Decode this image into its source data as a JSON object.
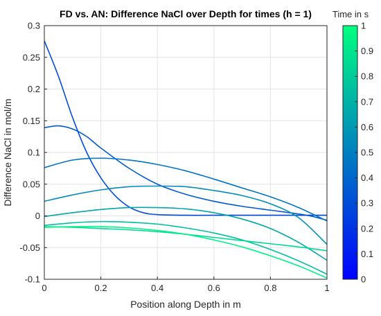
{
  "chart_data": {
    "type": "line",
    "title": "FD vs. AN: Difference NaCl over Depth for times (h = 1)",
    "xlabel": "Position along Depth in m",
    "ylabel": "Difference NaCl in mol/m",
    "xlim": [
      0,
      1
    ],
    "ylim": [
      -0.1,
      0.3
    ],
    "xticks": [
      0,
      0.2,
      0.4,
      0.6,
      0.8,
      1
    ],
    "xtick_labels": [
      "0",
      "0.2",
      "0.4",
      "0.6",
      "0.8",
      "1"
    ],
    "yticks": [
      -0.1,
      -0.05,
      0,
      0.05,
      0.1,
      0.15,
      0.2,
      0.25,
      0.3
    ],
    "ytick_labels": [
      "-0.1",
      "-0.05",
      "0",
      "0.05",
      "0.1",
      "0.15",
      "0.2",
      "0.25",
      "0.3"
    ],
    "grid": true,
    "colorbar": {
      "label": "Time in s",
      "range": [
        0,
        1
      ],
      "ticks": [
        0,
        0.1,
        0.2,
        0.3,
        0.4,
        0.5,
        0.6,
        0.7,
        0.8,
        0.9,
        1
      ],
      "tick_labels": [
        "0",
        "0.1",
        "0.2",
        "0.3",
        "0.4",
        "0.5",
        "0.6",
        "0.7",
        "0.8",
        "0.9",
        "1"
      ],
      "color_low": "#0000ff",
      "color_high": "#00ff80"
    },
    "series": [
      {
        "t": 0.3,
        "x": [
          0,
          0.05,
          0.1,
          0.15,
          0.2,
          0.25,
          0.3,
          0.35,
          0.4,
          0.5,
          0.6,
          0.7,
          0.8,
          0.9,
          1.0
        ],
        "y": [
          0.276,
          0.22,
          0.155,
          0.1,
          0.06,
          0.032,
          0.014,
          0.005,
          0.002,
          0.001,
          0.001,
          0.001,
          0.001,
          0.001,
          0.001
        ]
      },
      {
        "t": 0.35,
        "x": [
          0,
          0.05,
          0.1,
          0.15,
          0.2,
          0.3,
          0.4,
          0.5,
          0.6,
          0.7,
          0.8,
          0.9,
          0.95,
          1.0
        ],
        "y": [
          0.139,
          0.142,
          0.137,
          0.125,
          0.107,
          0.075,
          0.05,
          0.034,
          0.023,
          0.015,
          0.009,
          0.003,
          -0.001,
          -0.007
        ]
      },
      {
        "t": 0.45,
        "x": [
          0,
          0.1,
          0.2,
          0.3,
          0.4,
          0.5,
          0.6,
          0.7,
          0.8,
          0.9,
          1.0
        ],
        "y": [
          0.076,
          0.088,
          0.091,
          0.088,
          0.081,
          0.071,
          0.058,
          0.044,
          0.03,
          0.013,
          -0.008
        ]
      },
      {
        "t": 0.55,
        "x": [
          0,
          0.1,
          0.2,
          0.3,
          0.4,
          0.5,
          0.6,
          0.7,
          0.8,
          0.9,
          1.0
        ],
        "y": [
          0.023,
          0.033,
          0.041,
          0.046,
          0.047,
          0.046,
          0.04,
          0.032,
          0.019,
          -0.003,
          -0.045
        ]
      },
      {
        "t": 0.65,
        "x": [
          0,
          0.1,
          0.2,
          0.3,
          0.4,
          0.5,
          0.6,
          0.7,
          0.8,
          0.9,
          1.0
        ],
        "y": [
          -0.001,
          0.005,
          0.01,
          0.013,
          0.013,
          0.011,
          0.005,
          -0.005,
          -0.02,
          -0.042,
          -0.07
        ]
      },
      {
        "t": 0.75,
        "x": [
          0,
          0.1,
          0.2,
          0.3,
          0.4,
          0.5,
          0.6,
          0.7,
          0.8,
          0.9,
          1.0
        ],
        "y": [
          -0.015,
          -0.011,
          -0.009,
          -0.01,
          -0.013,
          -0.019,
          -0.027,
          -0.038,
          -0.053,
          -0.071,
          -0.092
        ]
      },
      {
        "t": 0.85,
        "x": [
          0,
          0.1,
          0.2,
          0.3,
          0.4,
          0.5,
          0.6,
          0.7,
          0.8,
          0.9,
          1.0
        ],
        "y": [
          -0.017,
          -0.018,
          -0.02,
          -0.022,
          -0.025,
          -0.029,
          -0.034,
          -0.039,
          -0.044,
          -0.049,
          -0.055
        ]
      },
      {
        "t": 0.95,
        "x": [
          0,
          0.1,
          0.2,
          0.3,
          0.4,
          0.5,
          0.6,
          0.7,
          0.8,
          0.9,
          1.0
        ],
        "y": [
          -0.018,
          -0.017,
          -0.017,
          -0.019,
          -0.023,
          -0.029,
          -0.038,
          -0.049,
          -0.063,
          -0.079,
          -0.098
        ]
      }
    ]
  }
}
